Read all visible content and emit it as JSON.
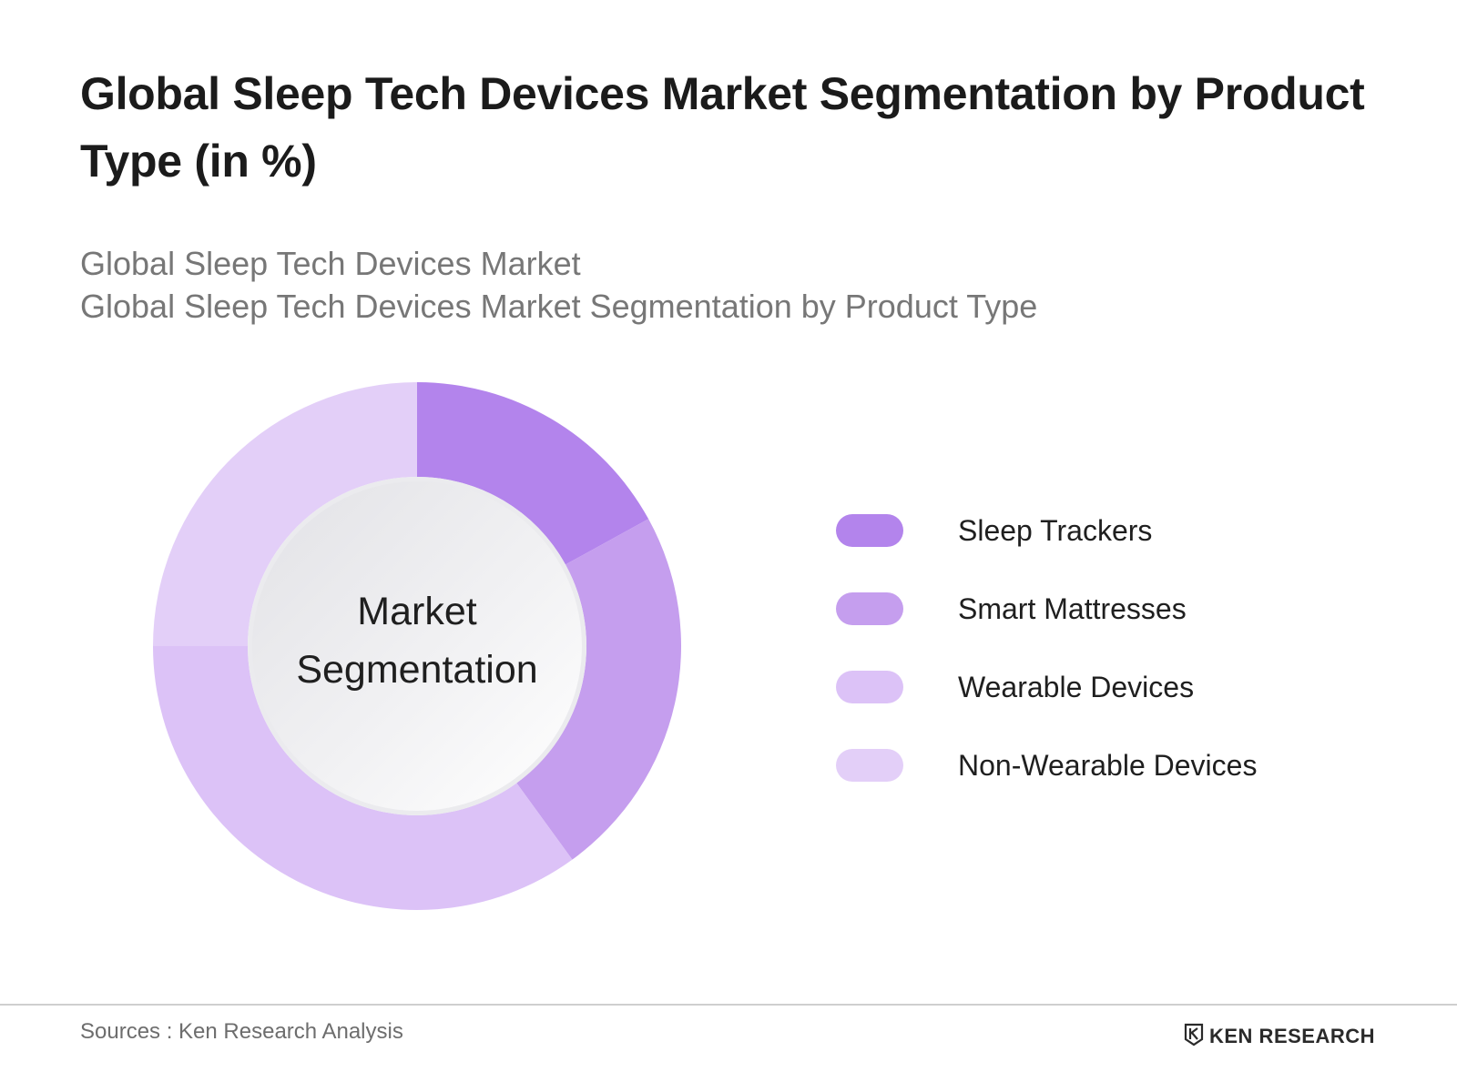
{
  "header": {
    "title": "Global Sleep Tech Devices Market Segmentation by Product Type (in %)",
    "subtitle_line1": "Global Sleep Tech Devices Market",
    "subtitle_line2": "Global Sleep Tech Devices Market Segmentation by Product Type"
  },
  "chart_data": {
    "type": "pie",
    "variant": "donut",
    "title": "Global Sleep Tech Devices Market Segmentation by Product Type (in %)",
    "center_label": [
      "Market",
      "Segmentation"
    ],
    "categories": [
      "Sleep Trackers",
      "Smart Mattresses",
      "Wearable Devices",
      "Non-Wearable Devices"
    ],
    "values": [
      17,
      23,
      35,
      25
    ],
    "unit": "%",
    "colors": [
      "#b384ec",
      "#c59eee",
      "#dcc2f7",
      "#e3cff8"
    ],
    "legend_position": "right"
  },
  "footer": {
    "source": "Sources : Ken Research Analysis",
    "brand": "KEN RESEARCH",
    "brand_icon": "ken-research-logo-icon"
  }
}
